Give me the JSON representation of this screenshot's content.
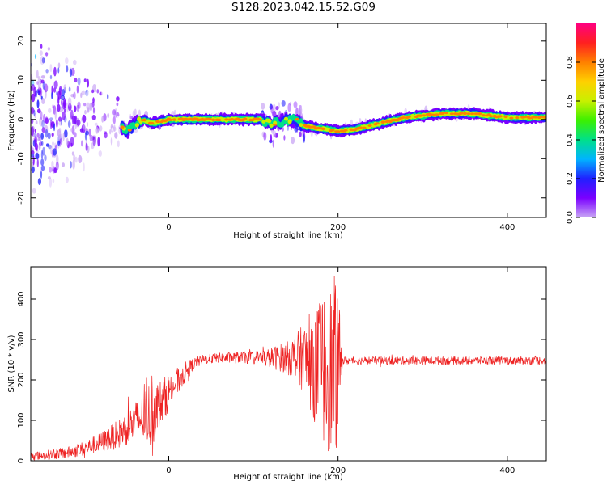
{
  "figure": {
    "title": "S128.2023.042.15.52.G09"
  },
  "chart_data": [
    {
      "type": "heatmap",
      "xlabel": "Height of straight line (km)",
      "ylabel": "Frequency (Hz)",
      "xlim": [
        -163,
        446
      ],
      "ylim": [
        -25,
        24.5
      ],
      "xticks": [
        0,
        200,
        400
      ],
      "yticks": [
        -20,
        -10,
        0,
        10,
        20
      ],
      "ridge": {
        "description_x": [
          -160,
          -100,
          -60,
          -50,
          -45,
          -40,
          -30,
          -20,
          0,
          60,
          110,
          120,
          150,
          158,
          170,
          200,
          220,
          240,
          260,
          280,
          300,
          320,
          360,
          400,
          446
        ],
        "frequency_hz": [
          0,
          0,
          -1,
          -3,
          -2,
          -1,
          0,
          -1,
          0,
          0,
          0,
          -1,
          0,
          -1.5,
          -2,
          -3,
          -2.5,
          -1.5,
          -0.5,
          0.5,
          1,
          1.5,
          1.5,
          0.5,
          0.5
        ]
      },
      "colorbar": {
        "label": "Normalized spectral amplitude",
        "ticks": [
          "0.0",
          "0.2",
          "0.4",
          "0.6",
          "0.8"
        ],
        "range": [
          0,
          1
        ],
        "colormap": [
          "#ffffff",
          "#c9a6f5",
          "#7a00ff",
          "#2020ff",
          "#00b4ff",
          "#00e08a",
          "#3cf000",
          "#c8f000",
          "#ffd000",
          "#ff8000",
          "#ff2020",
          "#ff0080"
        ]
      }
    },
    {
      "type": "line",
      "xlabel": "Height of straight line (km)",
      "ylabel": "SNR (10 * v/v)",
      "xlim": [
        -163,
        446
      ],
      "ylim": [
        0,
        480
      ],
      "xticks": [
        0,
        200,
        400
      ],
      "yticks": [
        0,
        100,
        200,
        300,
        400
      ],
      "color": "#ee2222",
      "envelope": {
        "x": [
          -163,
          -140,
          -120,
          -100,
          -80,
          -60,
          -40,
          -30,
          -20,
          -10,
          0,
          10,
          20,
          30,
          40,
          60,
          80,
          100,
          120,
          140,
          150,
          160,
          170,
          180,
          190,
          195,
          200,
          205,
          210,
          250,
          300,
          350,
          400,
          446
        ],
        "center": [
          12,
          15,
          20,
          30,
          45,
          65,
          95,
          110,
          115,
          140,
          170,
          195,
          220,
          240,
          250,
          255,
          255,
          255,
          255,
          255,
          255,
          250,
          240,
          230,
          225,
          230,
          230,
          248,
          248,
          248,
          248,
          248,
          248,
          248
        ],
        "spread": [
          10,
          12,
          14,
          18,
          25,
          35,
          50,
          65,
          90,
          60,
          45,
          35,
          25,
          15,
          12,
          12,
          14,
          16,
          25,
          40,
          60,
          90,
          130,
          180,
          210,
          230,
          200,
          10,
          10,
          10,
          10,
          10,
          10,
          10
        ]
      }
    }
  ]
}
